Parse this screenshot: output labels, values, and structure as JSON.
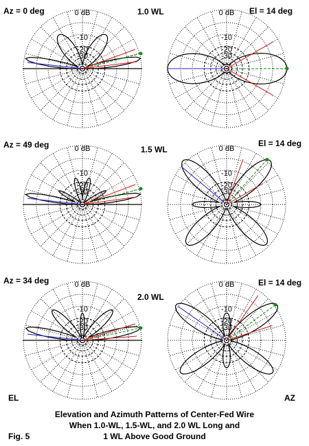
{
  "figure": {
    "caption_lines": [
      "Elevation and Azimuth Patterns of Center-Fed Wire",
      "When 1.0-WL, 1.5-WL, and 2.0 WL Long and",
      "1 WL Above Good Ground"
    ],
    "fig_label": "Fig. 5",
    "el_label": "EL",
    "az_label": "AZ"
  },
  "ring_labels": [
    "0 dB",
    "-10",
    "-20",
    "-30"
  ],
  "rows": [
    {
      "length": "1.0 WL",
      "az": "Az = 0 deg",
      "el": "El = 14 deg"
    },
    {
      "length": "1.5 WL",
      "az": "Az = 49 deg",
      "el": "El = 14 deg"
    },
    {
      "length": "2.0 WL",
      "az": "Az = 34 deg",
      "el": "El = 14 deg"
    }
  ],
  "colors": {
    "grid": "#000000",
    "pattern": "#000000",
    "blue_line": "#2323d0",
    "red_line": "#d01818",
    "green_line": "#138a13",
    "marker": "#1a8a1a"
  }
}
